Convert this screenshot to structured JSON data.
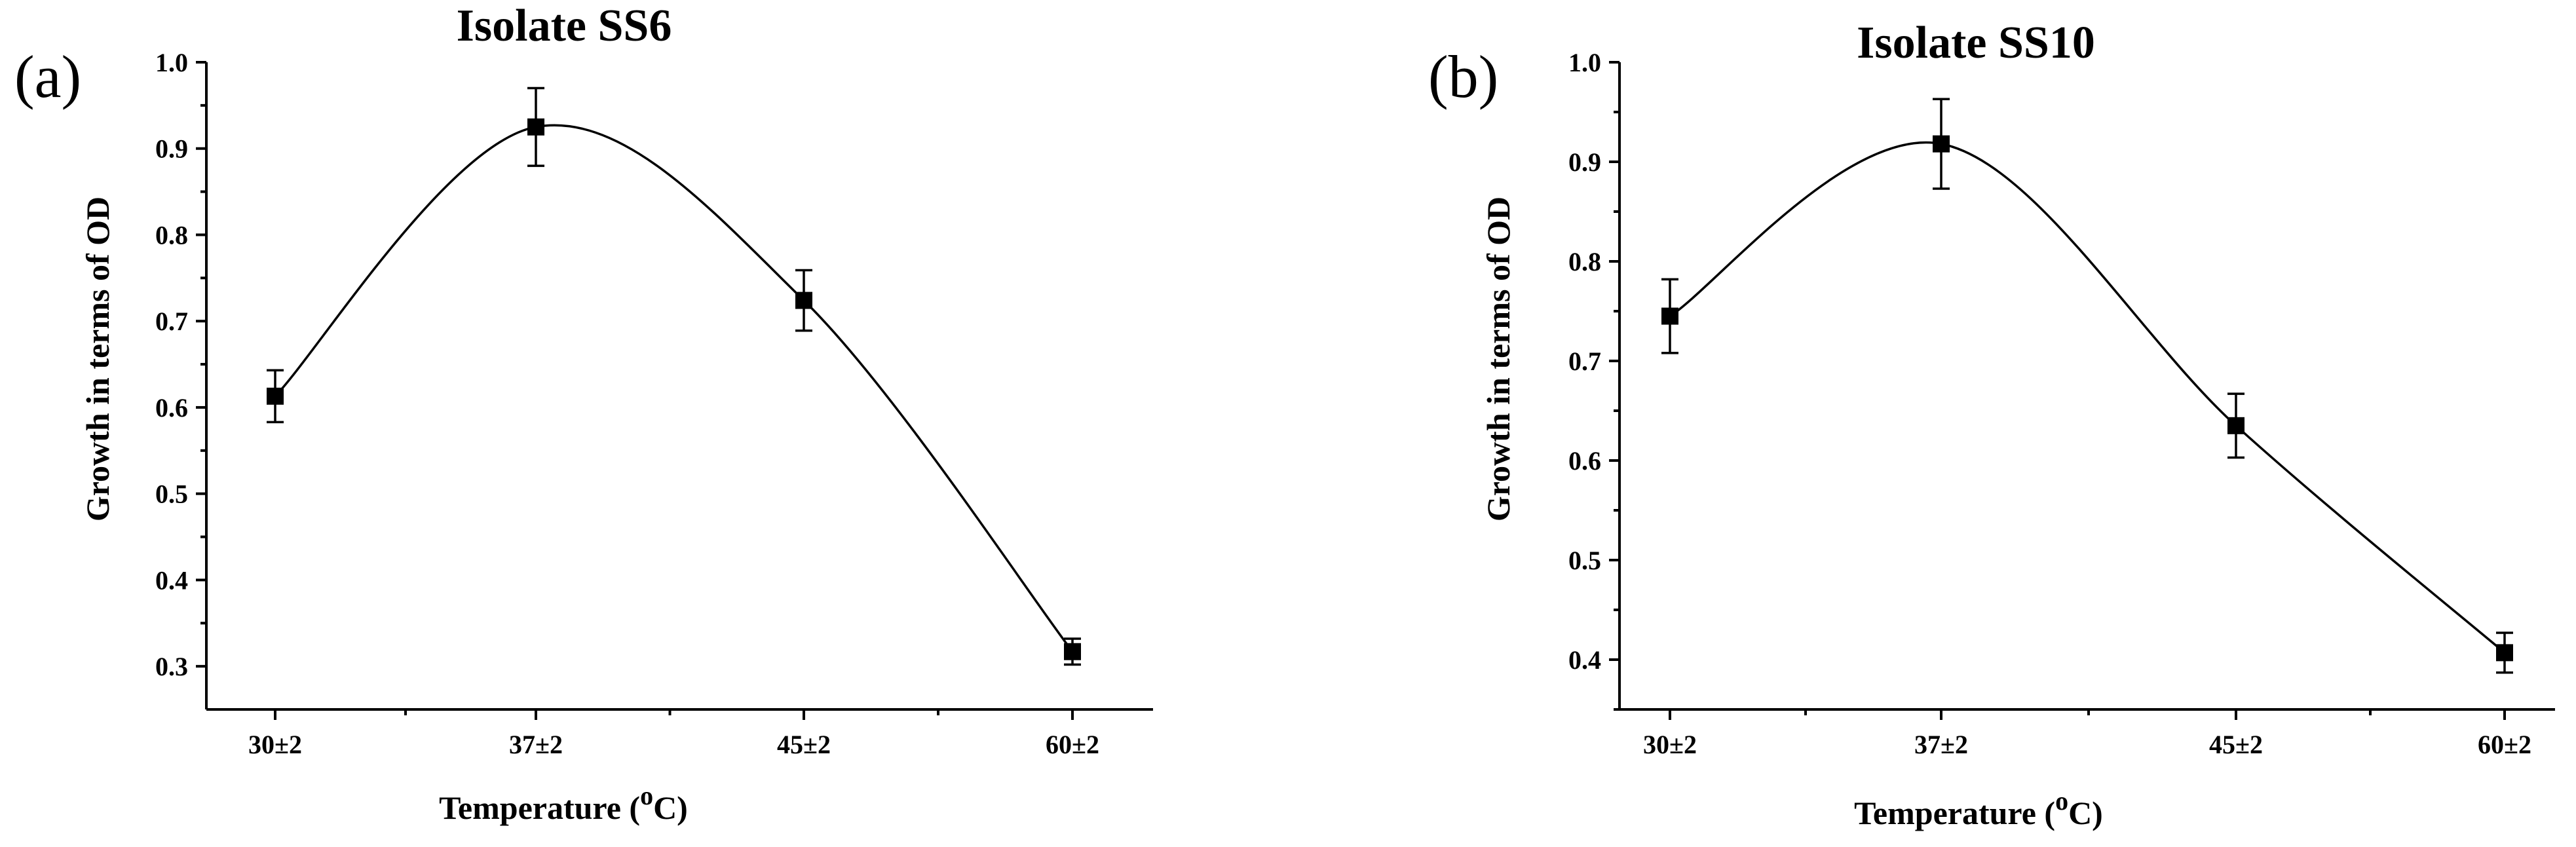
{
  "chart_data": [
    {
      "panel_label": "(a)",
      "type": "line",
      "title": "Isolate SS6",
      "xlabel": "Temperature (",
      "xlabel_sup": "o",
      "xlabel_end": "C)",
      "ylabel": "Growth in terms of OD",
      "categories": [
        "30±2",
        "37±2",
        "45±2",
        "60±2"
      ],
      "x": [
        30,
        37,
        45,
        60
      ],
      "values": [
        0.613,
        0.925,
        0.724,
        0.317
      ],
      "errors": [
        0.03,
        0.045,
        0.035,
        0.015
      ],
      "ylim": [
        0.25,
        1.0
      ],
      "yticks": [
        "0.3",
        "0.4",
        "0.5",
        "0.6",
        "0.7",
        "0.8",
        "0.9",
        "1.0"
      ],
      "grid": false,
      "legend": "none"
    },
    {
      "panel_label": "(b)",
      "type": "line",
      "title": "Isolate SS10",
      "xlabel": "Temperature (",
      "xlabel_sup": "o",
      "xlabel_end": "C)",
      "ylabel": "Growth in terms of OD",
      "categories": [
        "30±2",
        "37±2",
        "45±2",
        "60±2"
      ],
      "x": [
        30,
        37,
        45,
        60
      ],
      "values": [
        0.745,
        0.918,
        0.635,
        0.407
      ],
      "errors": [
        0.037,
        0.045,
        0.032,
        0.02
      ],
      "ylim": [
        0.35,
        1.0
      ],
      "yticks": [
        "0.4",
        "0.5",
        "0.6",
        "0.7",
        "0.8",
        "0.9",
        "1.0"
      ],
      "grid": false,
      "legend": "none"
    }
  ]
}
